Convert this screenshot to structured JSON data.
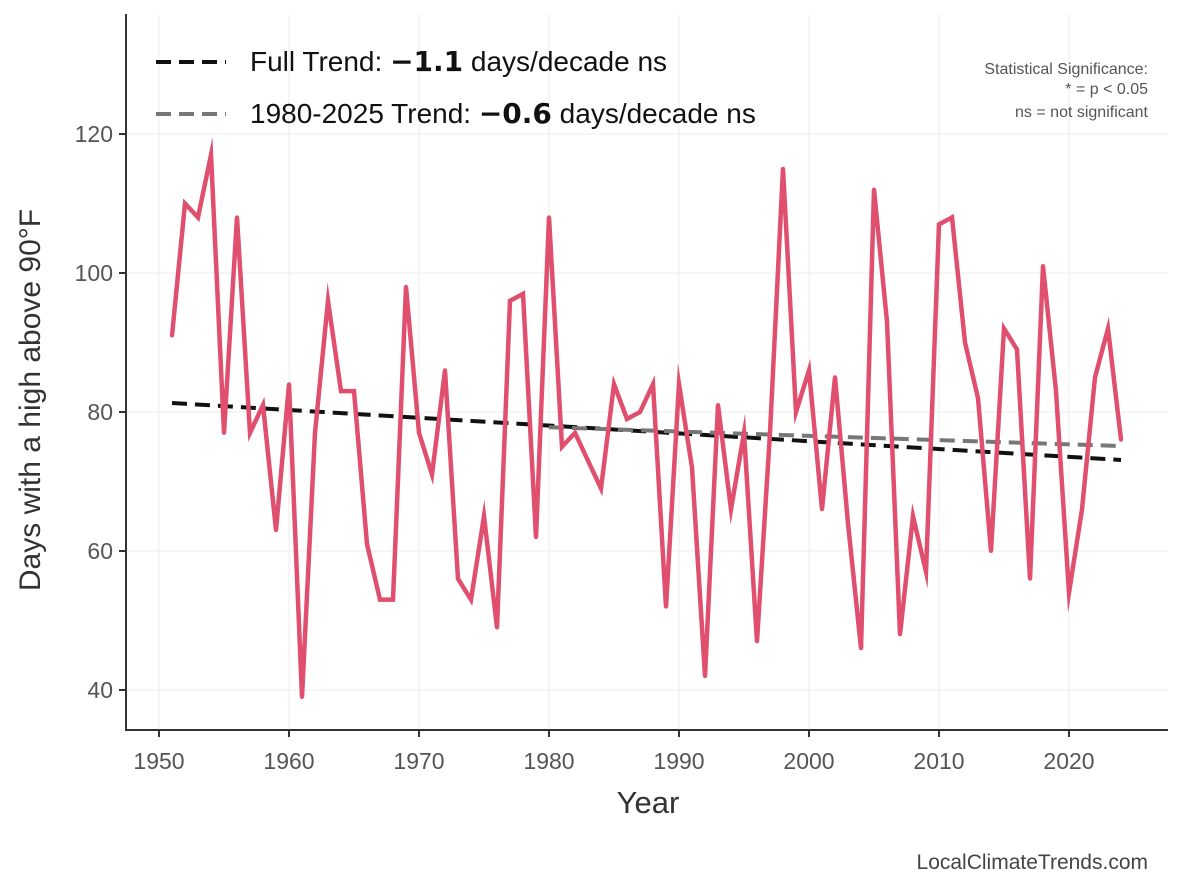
{
  "chart_data": {
    "type": "line",
    "xlabel": "Year",
    "ylabel": "Days with a high above 90°F",
    "xlim": [
      1947.5,
      2027.5
    ],
    "ylim": [
      34,
      138
    ],
    "xticks": [
      1950,
      1960,
      1970,
      1980,
      1990,
      2000,
      2010,
      2020
    ],
    "yticks": [
      40,
      60,
      80,
      100,
      120
    ],
    "grid": true,
    "series": [
      {
        "name": "Days above 90°F",
        "color": "#E0506E",
        "x": [
          1951,
          1952,
          1953,
          1954,
          1955,
          1956,
          1957,
          1958,
          1959,
          1960,
          1961,
          1962,
          1963,
          1964,
          1965,
          1966,
          1967,
          1968,
          1969,
          1970,
          1971,
          1972,
          1973,
          1974,
          1975,
          1976,
          1977,
          1978,
          1979,
          1980,
          1981,
          1982,
          1983,
          1984,
          1985,
          1986,
          1987,
          1988,
          1989,
          1990,
          1991,
          1992,
          1993,
          1994,
          1995,
          1996,
          1997,
          1998,
          1999,
          2000,
          2001,
          2002,
          2003,
          2004,
          2005,
          2006,
          2007,
          2008,
          2009,
          2010,
          2011,
          2012,
          2013,
          2014,
          2015,
          2016,
          2017,
          2018,
          2019,
          2020,
          2021,
          2022,
          2023,
          2024
        ],
        "values": [
          91,
          110,
          108,
          117,
          77,
          108,
          77,
          81,
          63,
          84,
          39,
          77,
          96,
          83,
          83,
          61,
          53,
          53,
          98,
          77,
          71,
          86,
          56,
          53,
          65,
          49,
          96,
          97,
          62,
          108,
          75,
          77,
          73,
          69,
          84,
          79,
          80,
          84,
          52,
          84,
          72,
          42,
          81,
          66,
          77,
          47,
          77,
          115,
          80,
          86,
          66,
          85,
          64,
          46,
          112,
          93,
          48,
          65,
          57,
          107,
          108,
          90,
          82,
          60,
          92,
          89,
          56,
          101,
          83,
          54,
          66,
          85,
          92,
          76
        ]
      }
    ],
    "trends": [
      {
        "name": "Full Trend",
        "color": "#111111",
        "x": [
          1951,
          2024
        ],
        "y": [
          81.3,
          73.1
        ]
      },
      {
        "name": "1980-2025 Trend",
        "color": "#777777",
        "x": [
          1980,
          2024
        ],
        "y": [
          77.8,
          75.1
        ]
      }
    ],
    "legend": {
      "placement": "top-left",
      "entries": [
        {
          "prefix": "Full Trend: ",
          "value": "−1.1",
          "suffix": " days/decade ns"
        },
        {
          "prefix": "1980-2025 Trend: ",
          "value": "−0.6",
          "suffix": " days/decade ns"
        }
      ]
    },
    "annotation": [
      "Statistical Significance:",
      "* = p < 0.05",
      "ns = not significant"
    ],
    "credit": "LocalClimateTrends.com"
  }
}
